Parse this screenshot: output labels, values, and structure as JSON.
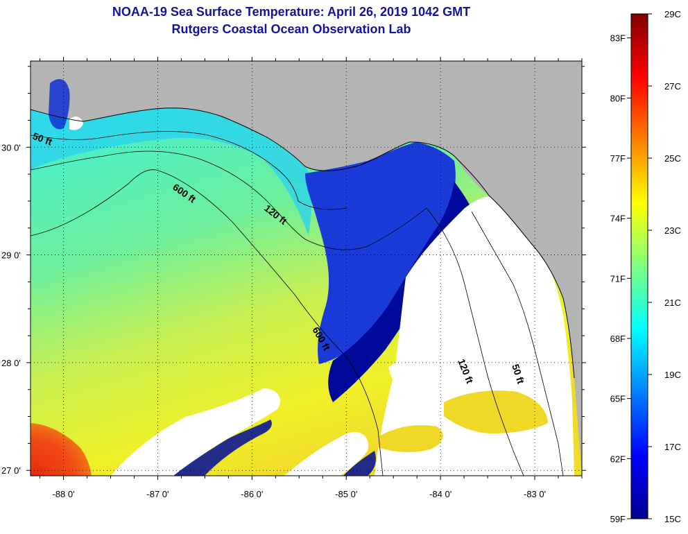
{
  "header": {
    "title": "NOAA-19 Sea Surface Temperature:  April 26, 2019 1042 GMT",
    "subtitle": "Rutgers Coastal Ocean Observation Lab"
  },
  "map": {
    "lon_range": [
      -88.35,
      -82.5
    ],
    "lat_range": [
      26.95,
      30.8
    ],
    "lon_ticks": [
      {
        "value": -88,
        "label": "-88 0'"
      },
      {
        "value": -87,
        "label": "-87 0'"
      },
      {
        "value": -86,
        "label": "-86 0'"
      },
      {
        "value": -85,
        "label": "-85 0'"
      },
      {
        "value": -84,
        "label": "-84 0'"
      },
      {
        "value": -83,
        "label": "-83 0'"
      }
    ],
    "lat_ticks": [
      {
        "value": 30,
        "label": "30 0'"
      },
      {
        "value": 29,
        "label": "29 0'"
      },
      {
        "value": 28,
        "label": "28 0'"
      },
      {
        "value": 27,
        "label": "27 0'"
      }
    ],
    "grid": "dotted",
    "contour_labels": [
      {
        "text": "50 ft"
      },
      {
        "text": "600 ft"
      },
      {
        "text": "120 ft"
      },
      {
        "text": "600 ft"
      },
      {
        "text": "120 ft"
      },
      {
        "text": "50 ft"
      }
    ],
    "colors": {
      "land": "#b4b4b4",
      "cloud": "#ffffff",
      "outside": "#ffffff"
    }
  },
  "colorbar": {
    "range_c": [
      15,
      29
    ],
    "range_f": [
      59,
      84.2
    ],
    "celsius_labels": [
      "29C",
      "27C",
      "25C",
      "23C",
      "21C",
      "19C",
      "17C",
      "15C"
    ],
    "fahrenheit_labels": [
      "83F",
      "80F",
      "77F",
      "74F",
      "71F",
      "68F",
      "65F",
      "62F",
      "59F"
    ],
    "colormap": "jet"
  }
}
